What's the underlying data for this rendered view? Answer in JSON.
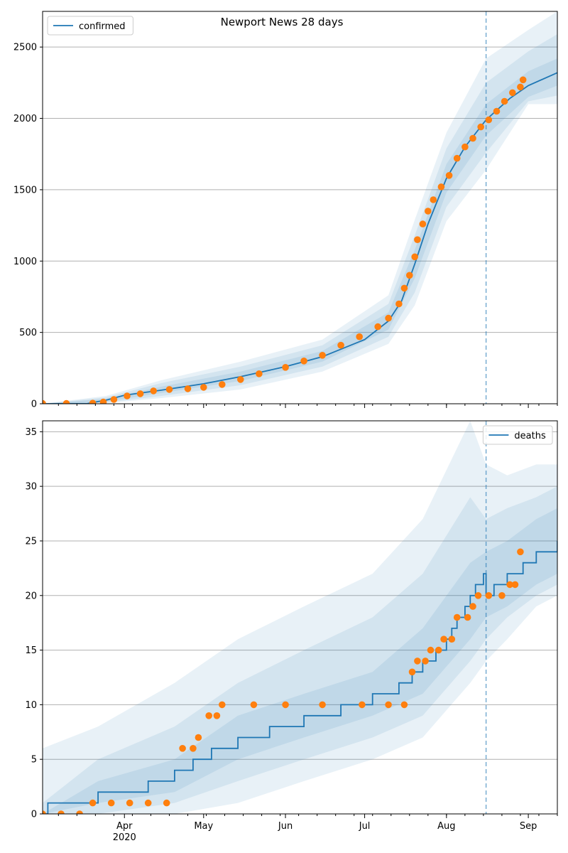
{
  "title": "Newport News 28 days",
  "colors": {
    "model": "#1f77b4",
    "observed": "#ff7f0e",
    "grid": "#b0b0b0",
    "band": "#1f77b4"
  },
  "chart_data": [
    {
      "type": "line",
      "legend": "confirmed",
      "legend_position": "upper-left",
      "ylim": [
        0,
        2750
      ],
      "yticks": [
        0,
        500,
        1000,
        1500,
        2000,
        2500
      ],
      "xlim": [
        "2020-03-01",
        "2020-09-12"
      ],
      "forecast_start": "2020-08-16",
      "grid": "y",
      "model_curve": [
        [
          "2020-03-01",
          0
        ],
        [
          "2020-03-18",
          2
        ],
        [
          "2020-03-25",
          25
        ],
        [
          "2020-04-01",
          60
        ],
        [
          "2020-04-15",
          95
        ],
        [
          "2020-05-01",
          140
        ],
        [
          "2020-05-15",
          190
        ],
        [
          "2020-06-01",
          260
        ],
        [
          "2020-06-15",
          330
        ],
        [
          "2020-07-01",
          450
        ],
        [
          "2020-07-10",
          580
        ],
        [
          "2020-07-15",
          720
        ],
        [
          "2020-07-20",
          980
        ],
        [
          "2020-07-25",
          1260
        ],
        [
          "2020-08-01",
          1580
        ],
        [
          "2020-08-08",
          1800
        ],
        [
          "2020-08-16",
          1990
        ],
        [
          "2020-08-25",
          2140
        ],
        [
          "2020-09-01",
          2230
        ],
        [
          "2020-09-12",
          2320
        ]
      ],
      "bands": [
        [
          [
            "2020-03-01",
            0,
            0
          ],
          [
            "2020-03-25",
            15,
            35
          ],
          [
            "2020-04-15",
            75,
            120
          ],
          [
            "2020-05-15",
            160,
            225
          ],
          [
            "2020-06-15",
            295,
            370
          ],
          [
            "2020-07-10",
            520,
            640
          ],
          [
            "2020-07-20",
            880,
            1080
          ],
          [
            "2020-08-01",
            1480,
            1680
          ],
          [
            "2020-08-16",
            1880,
            2100
          ],
          [
            "2020-09-01",
            2150,
            2330
          ],
          [
            "2020-09-12",
            2230,
            2420
          ]
        ],
        [
          [
            "2020-03-01",
            0,
            0
          ],
          [
            "2020-03-25",
            8,
            45
          ],
          [
            "2020-04-15",
            55,
            145
          ],
          [
            "2020-05-15",
            130,
            260
          ],
          [
            "2020-06-15",
            260,
            410
          ],
          [
            "2020-07-10",
            470,
            700
          ],
          [
            "2020-07-20",
            780,
            1180
          ],
          [
            "2020-08-01",
            1380,
            1790
          ],
          [
            "2020-08-16",
            1760,
            2250
          ],
          [
            "2020-09-01",
            2120,
            2470
          ],
          [
            "2020-09-12",
            2160,
            2590
          ]
        ],
        [
          [
            "2020-03-01",
            0,
            0
          ],
          [
            "2020-03-25",
            4,
            55
          ],
          [
            "2020-04-15",
            40,
            165
          ],
          [
            "2020-05-15",
            100,
            295
          ],
          [
            "2020-06-15",
            225,
            450
          ],
          [
            "2020-07-10",
            420,
            760
          ],
          [
            "2020-07-20",
            690,
            1290
          ],
          [
            "2020-08-01",
            1280,
            1900
          ],
          [
            "2020-08-16",
            1640,
            2420
          ],
          [
            "2020-09-01",
            2100,
            2620
          ],
          [
            "2020-09-12",
            2100,
            2750
          ]
        ]
      ],
      "observed": [
        [
          "2020-03-01",
          2
        ],
        [
          "2020-03-10",
          2
        ],
        [
          "2020-03-20",
          4
        ],
        [
          "2020-03-24",
          12
        ],
        [
          "2020-03-28",
          30
        ],
        [
          "2020-04-02",
          55
        ],
        [
          "2020-04-07",
          70
        ],
        [
          "2020-04-12",
          90
        ],
        [
          "2020-04-18",
          100
        ],
        [
          "2020-04-25",
          105
        ],
        [
          "2020-05-01",
          115
        ],
        [
          "2020-05-08",
          135
        ],
        [
          "2020-05-15",
          170
        ],
        [
          "2020-05-22",
          210
        ],
        [
          "2020-06-01",
          255
        ],
        [
          "2020-06-08",
          300
        ],
        [
          "2020-06-15",
          340
        ],
        [
          "2020-06-22",
          410
        ],
        [
          "2020-06-29",
          470
        ],
        [
          "2020-07-06",
          540
        ],
        [
          "2020-07-10",
          600
        ],
        [
          "2020-07-14",
          700
        ],
        [
          "2020-07-16",
          810
        ],
        [
          "2020-07-18",
          900
        ],
        [
          "2020-07-20",
          1030
        ],
        [
          "2020-07-21",
          1150
        ],
        [
          "2020-07-23",
          1260
        ],
        [
          "2020-07-25",
          1350
        ],
        [
          "2020-07-27",
          1430
        ],
        [
          "2020-07-30",
          1520
        ],
        [
          "2020-08-02",
          1600
        ],
        [
          "2020-08-05",
          1720
        ],
        [
          "2020-08-08",
          1800
        ],
        [
          "2020-08-11",
          1860
        ],
        [
          "2020-08-14",
          1940
        ],
        [
          "2020-08-17",
          1990
        ],
        [
          "2020-08-20",
          2050
        ],
        [
          "2020-08-23",
          2120
        ],
        [
          "2020-08-26",
          2180
        ],
        [
          "2020-08-29",
          2220
        ],
        [
          "2020-08-30",
          2270
        ]
      ]
    },
    {
      "type": "line",
      "legend": "deaths",
      "legend_position": "upper-right",
      "ylim": [
        0,
        36
      ],
      "yticks": [
        0,
        5,
        10,
        15,
        20,
        25,
        30,
        35
      ],
      "xlim": [
        "2020-03-01",
        "2020-09-12"
      ],
      "xticks": [
        {
          "date": "2020-04-01",
          "label": "Apr",
          "year": "2020"
        },
        {
          "date": "2020-05-01",
          "label": "May"
        },
        {
          "date": "2020-06-01",
          "label": "Jun"
        },
        {
          "date": "2020-07-01",
          "label": "Jul"
        },
        {
          "date": "2020-08-01",
          "label": "Aug"
        },
        {
          "date": "2020-09-01",
          "label": "Sep"
        }
      ],
      "forecast_start": "2020-08-16",
      "grid": "y",
      "model_steps": [
        [
          "2020-03-01",
          0
        ],
        [
          "2020-03-03",
          1
        ],
        [
          "2020-03-22",
          2
        ],
        [
          "2020-04-10",
          3
        ],
        [
          "2020-04-20",
          4
        ],
        [
          "2020-04-27",
          5
        ],
        [
          "2020-05-04",
          6
        ],
        [
          "2020-05-14",
          7
        ],
        [
          "2020-05-26",
          8
        ],
        [
          "2020-06-08",
          9
        ],
        [
          "2020-06-22",
          10
        ],
        [
          "2020-07-04",
          11
        ],
        [
          "2020-07-14",
          12
        ],
        [
          "2020-07-19",
          13
        ],
        [
          "2020-07-23",
          14
        ],
        [
          "2020-07-28",
          15
        ],
        [
          "2020-08-01",
          16
        ],
        [
          "2020-08-03",
          17
        ],
        [
          "2020-08-05",
          18
        ],
        [
          "2020-08-08",
          19
        ],
        [
          "2020-08-10",
          20
        ],
        [
          "2020-08-12",
          21
        ],
        [
          "2020-08-15",
          22
        ],
        [
          "2020-08-16",
          20
        ],
        [
          "2020-08-19",
          21
        ],
        [
          "2020-08-24",
          22
        ],
        [
          "2020-08-30",
          23
        ],
        [
          "2020-09-04",
          24
        ],
        [
          "2020-09-12",
          25
        ]
      ],
      "bands": [
        [
          [
            "2020-03-01",
            0,
            0
          ],
          [
            "2020-03-22",
            1,
            3
          ],
          [
            "2020-04-20",
            2,
            5
          ],
          [
            "2020-05-14",
            5,
            9
          ],
          [
            "2020-06-08",
            7,
            11
          ],
          [
            "2020-07-04",
            9,
            13
          ],
          [
            "2020-07-23",
            11,
            17
          ],
          [
            "2020-08-10",
            16,
            23
          ],
          [
            "2020-08-16",
            18,
            24
          ],
          [
            "2020-08-24",
            19,
            25
          ],
          [
            "2020-09-04",
            21,
            27
          ],
          [
            "2020-09-12",
            22,
            28
          ]
        ],
        [
          [
            "2020-03-01",
            0,
            1
          ],
          [
            "2020-03-22",
            0,
            5
          ],
          [
            "2020-04-20",
            1,
            8
          ],
          [
            "2020-05-14",
            3,
            12
          ],
          [
            "2020-06-08",
            5,
            15
          ],
          [
            "2020-07-04",
            7,
            18
          ],
          [
            "2020-07-23",
            9,
            22
          ],
          [
            "2020-08-10",
            14,
            29
          ],
          [
            "2020-08-16",
            16,
            27
          ],
          [
            "2020-08-24",
            18,
            28
          ],
          [
            "2020-09-04",
            20,
            29
          ],
          [
            "2020-09-12",
            21,
            30
          ]
        ],
        [
          [
            "2020-03-01",
            0,
            6
          ],
          [
            "2020-03-22",
            0,
            8
          ],
          [
            "2020-04-20",
            0,
            12
          ],
          [
            "2020-05-14",
            1,
            16
          ],
          [
            "2020-06-08",
            3,
            19
          ],
          [
            "2020-07-04",
            5,
            22
          ],
          [
            "2020-07-23",
            7,
            27
          ],
          [
            "2020-08-10",
            12,
            36
          ],
          [
            "2020-08-16",
            14,
            32
          ],
          [
            "2020-08-24",
            16,
            31
          ],
          [
            "2020-09-04",
            19,
            32
          ],
          [
            "2020-09-12",
            20,
            32
          ]
        ]
      ],
      "observed": [
        [
          "2020-03-01",
          0
        ],
        [
          "2020-03-08",
          0
        ],
        [
          "2020-03-15",
          0
        ],
        [
          "2020-03-20",
          1
        ],
        [
          "2020-03-27",
          1
        ],
        [
          "2020-04-03",
          1
        ],
        [
          "2020-04-10",
          1
        ],
        [
          "2020-04-17",
          1
        ],
        [
          "2020-04-23",
          6
        ],
        [
          "2020-04-27",
          6
        ],
        [
          "2020-04-29",
          7
        ],
        [
          "2020-05-03",
          9
        ],
        [
          "2020-05-06",
          9
        ],
        [
          "2020-05-08",
          10
        ],
        [
          "2020-05-20",
          10
        ],
        [
          "2020-06-01",
          10
        ],
        [
          "2020-06-15",
          10
        ],
        [
          "2020-06-30",
          10
        ],
        [
          "2020-07-10",
          10
        ],
        [
          "2020-07-16",
          10
        ],
        [
          "2020-07-19",
          13
        ],
        [
          "2020-07-21",
          14
        ],
        [
          "2020-07-24",
          14
        ],
        [
          "2020-07-26",
          15
        ],
        [
          "2020-07-29",
          15
        ],
        [
          "2020-07-31",
          16
        ],
        [
          "2020-08-03",
          16
        ],
        [
          "2020-08-05",
          18
        ],
        [
          "2020-08-09",
          18
        ],
        [
          "2020-08-11",
          19
        ],
        [
          "2020-08-13",
          20
        ],
        [
          "2020-08-17",
          20
        ],
        [
          "2020-08-22",
          20
        ],
        [
          "2020-08-25",
          21
        ],
        [
          "2020-08-27",
          21
        ],
        [
          "2020-08-29",
          24
        ]
      ]
    }
  ]
}
